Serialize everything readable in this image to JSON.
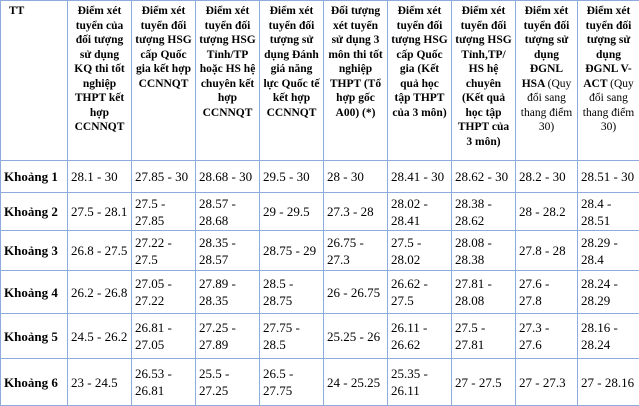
{
  "table": {
    "header": [
      {
        "title": "TT"
      },
      {
        "title": "Điểm xét tuyển của đối tượng sử dụng KQ thi tốt nghiệp THPT kết hợp CCNNQT"
      },
      {
        "title": "Điểm xét tuyển đối tượng HSG cấp Quốc gia kết hợp CCNNQT"
      },
      {
        "title": "Điểm xét tuyển đối tượng HSG Tỉnh/TP hoặc HS hệ chuyên kết hợp CCNNQT"
      },
      {
        "title": "Điểm xét tuyển đối tượng sử dụng Đánh giá năng lực Quốc tế kết hợp CCNNQT"
      },
      {
        "title": "Đối tượng xét tuyển sử dụng 3 môn thi tốt nghiệp THPT (Tổ hợp gốc A00) (*)"
      },
      {
        "title": "Điểm xét tuyển đối tượng HSG cấp Quốc gia (Kết quả học tập THPT của 3 môn)"
      },
      {
        "title": "Điểm xét tuyển đối tượng HSG Tỉnh,TP/ HS hệ chuyên (Kết quả học tập THPT của 3 môn)"
      },
      {
        "title": "Điểm xét tuyển đối tượng sử dụng ĐGNL HSA",
        "note": "(Quy đổi sang thang điểm 30)"
      },
      {
        "title": "Điểm xét tuyển đối tượng sử dụng ĐGNL V-ACT",
        "note": "(Quy đổi sang thang điểm 30)"
      }
    ],
    "rows": [
      [
        "Khoảng 1",
        "28.1 - 30",
        "27.85 - 30",
        "28.68 - 30",
        "29.5 - 30",
        "28 - 30",
        "28.41 - 30",
        "28.62 - 30",
        "28.2 - 30",
        "28.51 - 30"
      ],
      [
        "Khoảng 2",
        "27.5 - 28.1",
        "27.5 - 27.85",
        "28.57 - 28.68",
        "29 - 29.5",
        "27.3 - 28",
        "28.02 - 28.41",
        "28.38 - 28.62",
        "28 - 28.2",
        "28.4 - 28.51"
      ],
      [
        "Khoảng 3",
        "26.8 - 27.5",
        "27.22 - 27.5",
        "28.35 - 28.57",
        "28.75 - 29",
        "26.75 - 27.3",
        "27.5 - 28.02",
        "28.08 - 28.38",
        "27.8 - 28",
        "28.29 - 28.4"
      ],
      [
        "Khoảng 4",
        "26.2 - 26.8",
        "27.05 - 27.22",
        "27.89 - 28.35",
        "28.5 - 28.75",
        "26 - 26.75",
        "26.62 - 27.5",
        "27.81 - 28.08",
        "27.6 - 27.8",
        "28.24 - 28.29"
      ],
      [
        "Khoảng 5",
        "24.5 - 26.2",
        "26.81 - 27.05",
        "27.25 - 27.89",
        "27.75 - 28.5",
        "25.25 - 26",
        "26.11 - 26.62",
        "27.5 - 27.81",
        "27.3 - 27.6",
        "28.16 - 28.24"
      ],
      [
        "Khoảng 6",
        "23 - 24.5",
        "26.53 - 26.81",
        "25.5 - 27.25",
        "26.5 - 27.75",
        "24 - 25.25",
        "25.35 - 26.11",
        "27 - 27.5",
        "27 - 27.3",
        "27 - 28.16"
      ]
    ]
  }
}
